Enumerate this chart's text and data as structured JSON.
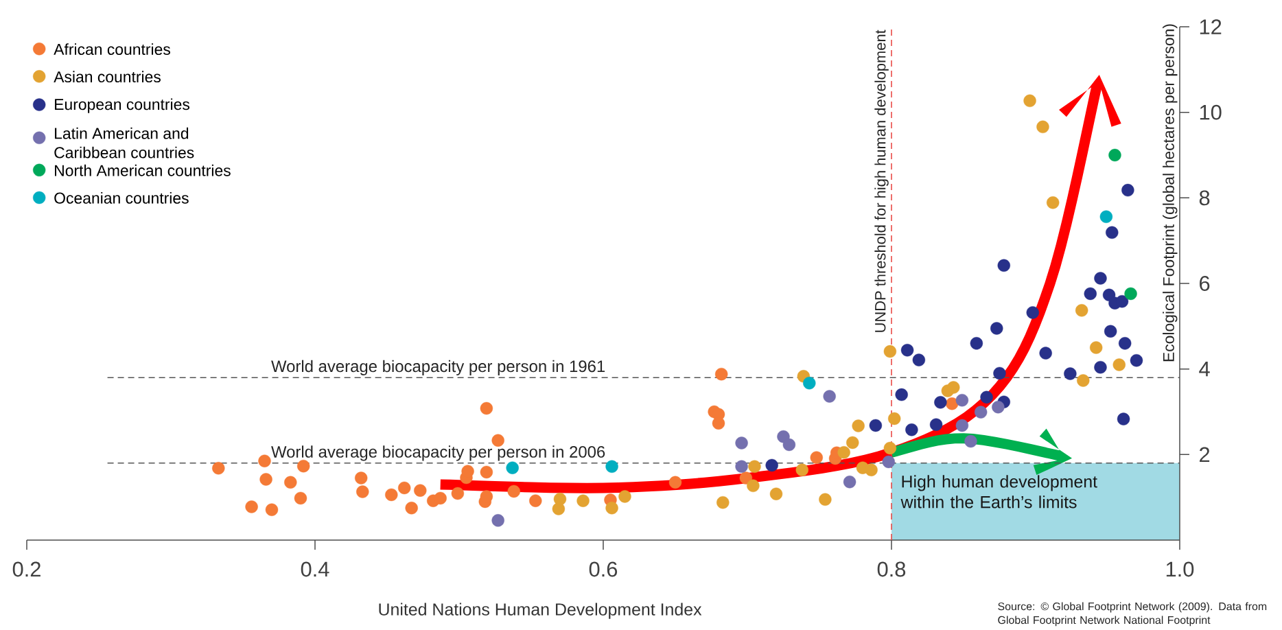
{
  "chart_data": {
    "type": "scatter",
    "xlabel": "United Nations Human Development Index",
    "ylabel": "Ecological Footprint (global hectares per person)",
    "xlim": [
      0.2,
      1.0
    ],
    "ylim": [
      0,
      12
    ],
    "xticks": [
      0.2,
      0.4,
      0.6,
      0.8,
      {
        "value": 1.0,
        "label": "1.0"
      }
    ],
    "yticks": [
      2,
      4,
      6,
      8,
      10,
      12
    ],
    "legend": "top left",
    "marker": "circle",
    "ref_lines": [
      {
        "axis": "y",
        "value": 3.8,
        "label": "World average biocapacity per person in 1961",
        "color": "#555555",
        "line_style": "dashed"
      },
      {
        "axis": "y",
        "value": 1.8,
        "label": "World average biocapacity per person in 2006",
        "color": "#555555",
        "line_style": "dashed"
      },
      {
        "axis": "x",
        "value": 0.8,
        "label": "UNDP threshold for high human development",
        "color": "#e8403c",
        "line_style": "dashed"
      }
    ],
    "annotations": [
      "High human development within the Earth’s limits",
      "Source: © Global Footprint Network (2009). Data from Global Footprint Network National Footprint"
    ],
    "series": [
      {
        "name": "African countries",
        "color": "#f47a36",
        "x": [
          0.333,
          0.356,
          0.365,
          0.366,
          0.37,
          0.383,
          0.39,
          0.392,
          0.432,
          0.433,
          0.453,
          0.462,
          0.467,
          0.473,
          0.482,
          0.487,
          0.499,
          0.505,
          0.506,
          0.518,
          0.519,
          0.519,
          0.519,
          0.527,
          0.538,
          0.553,
          0.605,
          0.65,
          0.677,
          0.68,
          0.68,
          0.682,
          0.699,
          0.748,
          0.761,
          0.762,
          0.842
        ],
        "values": [
          1.68,
          0.78,
          1.85,
          1.42,
          0.71,
          1.35,
          0.98,
          1.73,
          1.45,
          1.13,
          1.06,
          1.22,
          0.75,
          1.16,
          0.92,
          0.98,
          1.09,
          1.46,
          1.61,
          0.9,
          1.02,
          1.59,
          3.08,
          2.33,
          1.14,
          0.92,
          0.94,
          1.35,
          3.0,
          2.94,
          2.73,
          3.88,
          1.45,
          1.93,
          1.91,
          2.04,
          3.19
        ]
      },
      {
        "name": "Asian countries",
        "color": "#e3a332",
        "x": [
          0.569,
          0.57,
          0.586,
          0.606,
          0.615,
          0.683,
          0.704,
          0.705,
          0.72,
          0.738,
          0.739,
          0.754,
          0.767,
          0.773,
          0.777,
          0.78,
          0.786,
          0.799,
          0.799,
          0.802,
          0.839,
          0.843,
          0.896,
          0.905,
          0.912,
          0.932,
          0.933,
          0.942,
          0.958
        ],
        "values": [
          0.73,
          0.96,
          0.92,
          0.75,
          1.02,
          0.88,
          1.27,
          1.72,
          1.08,
          1.64,
          3.83,
          0.95,
          2.05,
          2.28,
          2.67,
          1.69,
          1.64,
          2.15,
          4.41,
          2.84,
          3.49,
          3.57,
          10.27,
          9.66,
          7.89,
          5.37,
          3.73,
          4.5,
          4.1
        ]
      },
      {
        "name": "European countries",
        "color": "#28318a",
        "x": [
          0.717,
          0.789,
          0.807,
          0.811,
          0.814,
          0.819,
          0.831,
          0.834,
          0.859,
          0.866,
          0.873,
          0.875,
          0.878,
          0.878,
          0.898,
          0.907,
          0.924,
          0.938,
          0.945,
          0.945,
          0.951,
          0.952,
          0.953,
          0.955,
          0.96,
          0.961,
          0.962,
          0.964,
          0.97
        ],
        "values": [
          1.75,
          2.68,
          3.4,
          4.44,
          2.58,
          4.21,
          2.7,
          3.22,
          4.6,
          3.34,
          4.95,
          3.9,
          3.23,
          6.42,
          5.32,
          4.37,
          3.89,
          5.76,
          4.04,
          6.12,
          5.73,
          4.88,
          7.19,
          5.54,
          5.58,
          2.83,
          4.6,
          8.18,
          4.2
        ]
      },
      {
        "name": "Latin American and Caribbean countries",
        "color": "#7470ae",
        "x": [
          0.527,
          0.696,
          0.696,
          0.725,
          0.729,
          0.757,
          0.771,
          0.798,
          0.849,
          0.849,
          0.855,
          0.862,
          0.874
        ],
        "values": [
          0.46,
          1.72,
          2.27,
          2.42,
          2.23,
          3.36,
          1.36,
          1.83,
          3.27,
          2.68,
          2.31,
          2.99,
          3.11
        ]
      },
      {
        "name": "North American countries",
        "color": "#00a85a",
        "x": [
          0.955,
          0.966
        ],
        "values": [
          9.0,
          5.76
        ]
      },
      {
        "name": "Oceanian countries",
        "color": "#00aec0",
        "x": [
          0.537,
          0.606,
          0.743,
          0.949
        ],
        "values": [
          1.69,
          1.72,
          3.67,
          7.56
        ]
      }
    ]
  }
}
